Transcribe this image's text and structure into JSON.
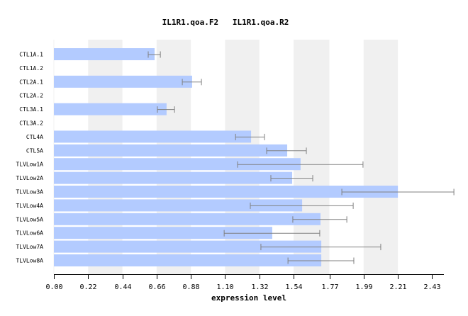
{
  "chart_data": {
    "type": "bar",
    "orientation": "horizontal",
    "title": "IL1R1.qoa.F2   IL1R1.qoa.R2",
    "xlabel": "expression level",
    "ylabel": "",
    "xlim": [
      0,
      2.5
    ],
    "xticks": [
      "0.00",
      "0.22",
      "0.44",
      "0.66",
      "0.88",
      "1.10",
      "1.32",
      "1.54",
      "1.77",
      "1.99",
      "2.21",
      "2.43"
    ],
    "xtick_values": [
      0.0,
      0.22,
      0.44,
      0.66,
      0.88,
      1.1,
      1.32,
      1.54,
      1.77,
      1.99,
      2.21,
      2.43
    ],
    "grid": "alternating vertical bands",
    "legend": "none",
    "categories": [
      "CTL1A.1",
      "CTL1A.2",
      "CTL2A.1",
      "CTL2A.2",
      "CTL3A.1",
      "CTL3A.2",
      "CTL4A",
      "CTL5A",
      "TLVLow1A",
      "TLVLow2A",
      "TLVLow3A",
      "TLVLow4A",
      "TLVLow5A",
      "TLVLow6A",
      "TLVLow7A",
      "TLVLow8A"
    ],
    "values": [
      0.647,
      null,
      0.888,
      null,
      0.724,
      null,
      1.267,
      1.499,
      1.585,
      1.531,
      2.21,
      1.595,
      1.713,
      1.403,
      1.718,
      1.718
    ],
    "error_low": [
      0.606,
      null,
      0.825,
      null,
      0.665,
      null,
      1.167,
      1.367,
      1.18,
      1.394,
      1.85,
      1.262,
      1.535,
      1.094,
      1.33,
      1.504
    ],
    "error_high": [
      0.684,
      null,
      0.948,
      null,
      0.775,
      null,
      1.353,
      1.622,
      1.986,
      1.663,
      2.57,
      1.923,
      1.882,
      1.708,
      2.1,
      1.927
    ],
    "colors": {
      "bar": "#b3cbff",
      "band": "#f0f0f0",
      "error_bar": "#808080",
      "axis": "#000000"
    }
  }
}
